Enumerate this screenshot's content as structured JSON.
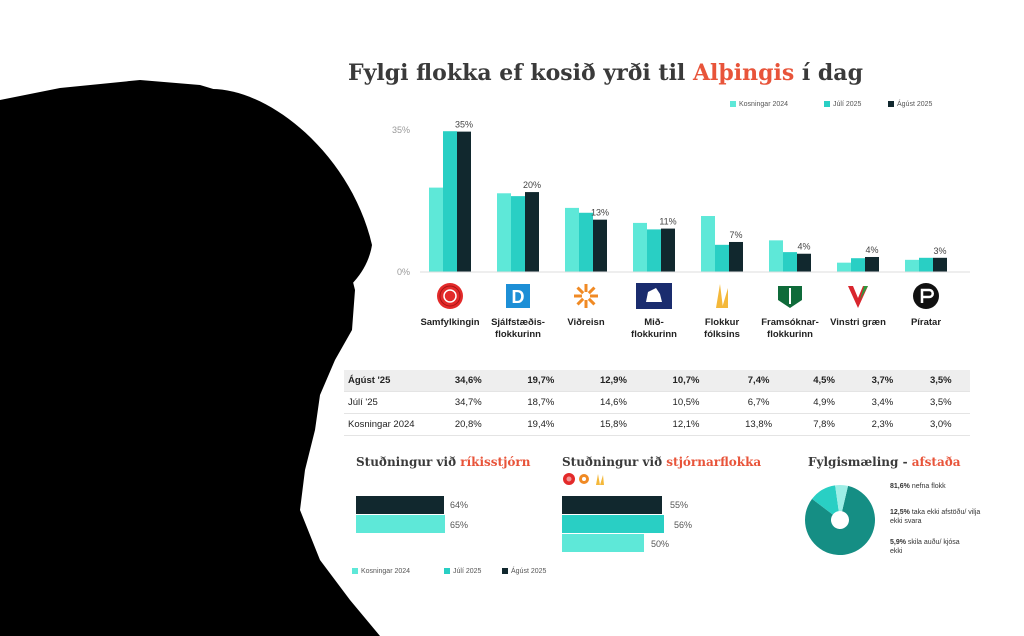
{
  "title": {
    "pre": "Fylgi flokka ef kosið yrði til ",
    "accent": "Alþingis",
    "post": " í dag"
  },
  "colors": {
    "kosningar": "#5ee8d8",
    "juli": "#29cfc4",
    "agust": "#11282e",
    "accent": "#e8543a",
    "silhouette": "#000000"
  },
  "chart_data": [
    {
      "type": "bar",
      "title": "Fylgi flokka ef kosið yrði til Alþingis í dag",
      "legend_position": "top-right",
      "categories": [
        "Samfylkingin",
        "Sjálfstæðis-flokkurinn",
        "Viðreisn",
        "Mið-flokkurinn",
        "Flokkur fólksins",
        "Framsóknar-flokkurinn",
        "Vinstri græn",
        "Píratar"
      ],
      "ylim": [
        0,
        35
      ],
      "yticks": [
        "35%",
        "0%"
      ],
      "series": [
        {
          "name": "Kosningar 2024",
          "values": [
            20.8,
            19.4,
            15.8,
            12.1,
            13.8,
            7.8,
            2.3,
            3.0
          ]
        },
        {
          "name": "Júlí 2025",
          "values": [
            34.7,
            18.7,
            14.6,
            10.5,
            6.7,
            4.9,
            3.4,
            3.5
          ]
        },
        {
          "name": "Ágúst 2025",
          "values": [
            34.6,
            19.7,
            12.9,
            10.7,
            7.4,
            4.5,
            3.7,
            3.5
          ]
        }
      ],
      "data_labels": [
        "35%",
        "20%",
        "13%",
        "11%",
        "7%",
        "4%",
        "4%",
        "3%"
      ],
      "category_lines": [
        [
          "Samfylkingin"
        ],
        [
          "Sjálfstæðis-",
          "flokkurinn"
        ],
        [
          "Viðreisn"
        ],
        [
          "Mið-",
          "flokkurinn"
        ],
        [
          "Flokkur",
          "fólksins"
        ],
        [
          "Framsóknar-",
          "flokkurinn"
        ],
        [
          "Vinstri græn"
        ],
        [
          "Píratar"
        ]
      ]
    },
    {
      "type": "table",
      "rows": [
        {
          "label": "Ágúst '25",
          "cells": [
            "34,6%",
            "19,7%",
            "12,9%",
            "10,7%",
            "7,4%",
            "4,5%",
            "3,7%",
            "3,5%"
          ]
        },
        {
          "label": "Júlí '25",
          "cells": [
            "34,7%",
            "18,7%",
            "14,6%",
            "10,5%",
            "6,7%",
            "4,9%",
            "3,4%",
            "3,5%"
          ]
        },
        {
          "label": "Kosningar 2024",
          "cells": [
            "20,8%",
            "19,4%",
            "15,8%",
            "12,1%",
            "13,8%",
            "7,8%",
            "2,3%",
            "3,0%"
          ]
        }
      ]
    },
    {
      "type": "bar",
      "orientation": "horizontal",
      "title": "Stuðningur við ríkisstjórn",
      "series": [
        {
          "name": "Ágúst 2025",
          "value": 64,
          "label": "64%"
        },
        {
          "name": "Júlí 2025",
          "value": 65,
          "label": "65%"
        }
      ]
    },
    {
      "type": "bar",
      "orientation": "horizontal",
      "title": "Stuðningur við stjórnarflokka",
      "series": [
        {
          "name": "Ágúst 2025",
          "value": 55,
          "label": "55%"
        },
        {
          "name": "Júlí 2025",
          "value": 56,
          "label": "56%"
        },
        {
          "name": "Kosningar 2024",
          "value": 50,
          "label": "50%"
        }
      ]
    },
    {
      "type": "pie",
      "title": "Fylgismæling - afstaða",
      "slices": [
        {
          "value": 81.6,
          "pct": "81,6%",
          "text": "nefna flokk"
        },
        {
          "value": 12.5,
          "pct": "12,5%",
          "text": "taka ekki afstöðu/ vilja ekki svara"
        },
        {
          "value": 5.9,
          "pct": "5,9%",
          "text": "skila auðu/ kjósa ekki"
        }
      ]
    }
  ],
  "bottom_legend": [
    "Kosningar 2024",
    "Júlí 2025",
    "Ágúst 2025"
  ],
  "support_titles": {
    "gov": {
      "pre": "Stuðningur við ",
      "accent": "ríkisstjórn"
    },
    "parties": {
      "pre": "Stuðningur við ",
      "accent": "stjórnarflokka"
    },
    "afstada": {
      "pre": "Fylgismæling - ",
      "accent": "afstaða"
    }
  },
  "logos": [
    "rose-icon",
    "d-letter-icon",
    "sun-icon",
    "horse-icon",
    "hand-icon",
    "leaves-icon",
    "v-icon",
    "pirate-icon"
  ],
  "logo_letter": "D"
}
